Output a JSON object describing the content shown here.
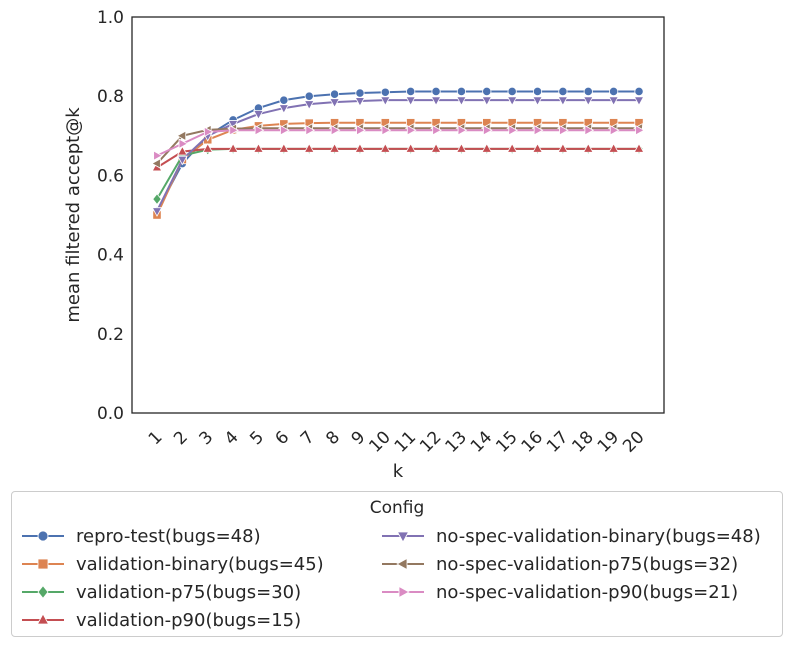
{
  "chart_data": {
    "type": "line",
    "title": "",
    "xlabel": "k",
    "ylabel": "mean filtered accept@k",
    "ylim": [
      0.0,
      1.0
    ],
    "yticks": [
      "0.0",
      "0.2",
      "0.4",
      "0.6",
      "0.8",
      "1.0"
    ],
    "x": [
      1,
      2,
      3,
      4,
      5,
      6,
      7,
      8,
      9,
      10,
      11,
      12,
      13,
      14,
      15,
      16,
      17,
      18,
      19,
      20
    ],
    "xtick_labels": [
      "1",
      "2",
      "3",
      "4",
      "5",
      "6",
      "7",
      "8",
      "9",
      "10",
      "11",
      "12",
      "13",
      "14",
      "15",
      "16",
      "17",
      "18",
      "19",
      "20"
    ],
    "legend_title": "Config",
    "legend_position": "below",
    "series": [
      {
        "name": "repro-test(bugs=48)",
        "color": "#4c72b0",
        "marker": "circle",
        "values": [
          0.51,
          0.63,
          0.7,
          0.74,
          0.77,
          0.79,
          0.8,
          0.805,
          0.808,
          0.81,
          0.812,
          0.812,
          0.812,
          0.812,
          0.812,
          0.812,
          0.812,
          0.812,
          0.812,
          0.812
        ]
      },
      {
        "name": "validation-binary(bugs=45)",
        "color": "#dd8452",
        "marker": "square",
        "values": [
          0.5,
          0.64,
          0.69,
          0.715,
          0.725,
          0.73,
          0.732,
          0.733,
          0.733,
          0.733,
          0.733,
          0.733,
          0.733,
          0.733,
          0.733,
          0.733,
          0.733,
          0.733,
          0.733,
          0.733
        ]
      },
      {
        "name": "validation-p75(bugs=30)",
        "color": "#55a868",
        "marker": "diamond",
        "values": [
          0.54,
          0.65,
          0.665,
          0.667,
          0.667,
          0.667,
          0.667,
          0.667,
          0.667,
          0.667,
          0.667,
          0.667,
          0.667,
          0.667,
          0.667,
          0.667,
          0.667,
          0.667,
          0.667,
          0.667
        ]
      },
      {
        "name": "validation-p90(bugs=15)",
        "color": "#c44e52",
        "marker": "triangle-up",
        "values": [
          0.62,
          0.66,
          0.667,
          0.667,
          0.667,
          0.667,
          0.667,
          0.667,
          0.667,
          0.667,
          0.667,
          0.667,
          0.667,
          0.667,
          0.667,
          0.667,
          0.667,
          0.667,
          0.667,
          0.667
        ]
      },
      {
        "name": "no-spec-validation-binary(bugs=48)",
        "color": "#8172b3",
        "marker": "triangle-down",
        "values": [
          0.51,
          0.64,
          0.7,
          0.73,
          0.755,
          0.77,
          0.78,
          0.785,
          0.788,
          0.79,
          0.79,
          0.79,
          0.79,
          0.79,
          0.79,
          0.79,
          0.79,
          0.79,
          0.79,
          0.79
        ]
      },
      {
        "name": "no-spec-validation-p75(bugs=32)",
        "color": "#937860",
        "marker": "triangle-left",
        "values": [
          0.63,
          0.7,
          0.715,
          0.718,
          0.719,
          0.719,
          0.719,
          0.719,
          0.719,
          0.719,
          0.719,
          0.719,
          0.719,
          0.719,
          0.719,
          0.719,
          0.719,
          0.719,
          0.719,
          0.719
        ]
      },
      {
        "name": "no-spec-validation-p90(bugs=21)",
        "color": "#da8bc3",
        "marker": "triangle-right",
        "values": [
          0.65,
          0.68,
          0.71,
          0.714,
          0.714,
          0.714,
          0.714,
          0.714,
          0.714,
          0.714,
          0.714,
          0.714,
          0.714,
          0.714,
          0.714,
          0.714,
          0.714,
          0.714,
          0.714,
          0.714
        ]
      }
    ]
  }
}
